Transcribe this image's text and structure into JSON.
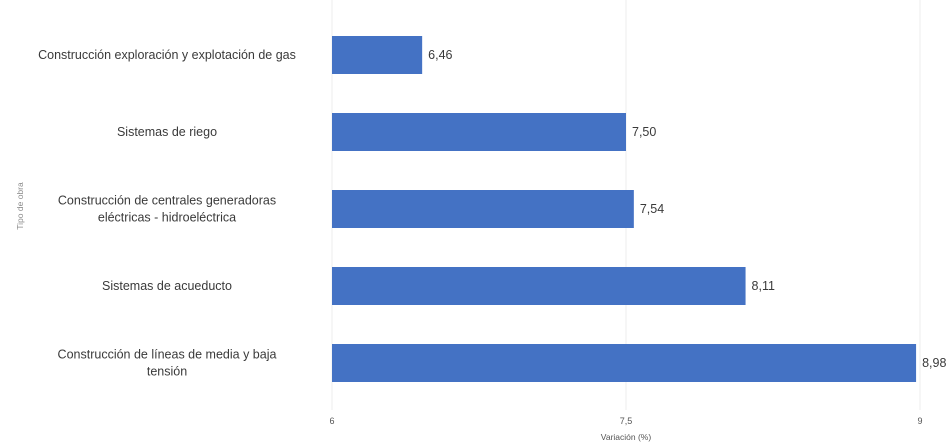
{
  "chart_data": {
    "type": "bar",
    "orientation": "horizontal",
    "categories": [
      [
        "Construcción exploración y explotación de gas"
      ],
      [
        "Sistemas de riego"
      ],
      [
        "Construcción de centrales generadoras",
        "eléctricas - hidroeléctrica"
      ],
      [
        "Sistemas de acueducto"
      ],
      [
        "Construcción de líneas de media y baja",
        "tensión"
      ]
    ],
    "values": [
      6.46,
      7.5,
      7.54,
      8.11,
      8.98
    ],
    "value_labels": [
      "6,46",
      "7,50",
      "7,54",
      "8,11",
      "8,98"
    ],
    "xlabel": "Variación (%)",
    "ylabel": "Tipo de obra",
    "xlim": [
      6,
      9
    ],
    "xticks": [
      6,
      7.5,
      9
    ],
    "xtick_labels": [
      "6",
      "7,5",
      "9"
    ],
    "bar_color": "#4472c4",
    "grid": true
  }
}
